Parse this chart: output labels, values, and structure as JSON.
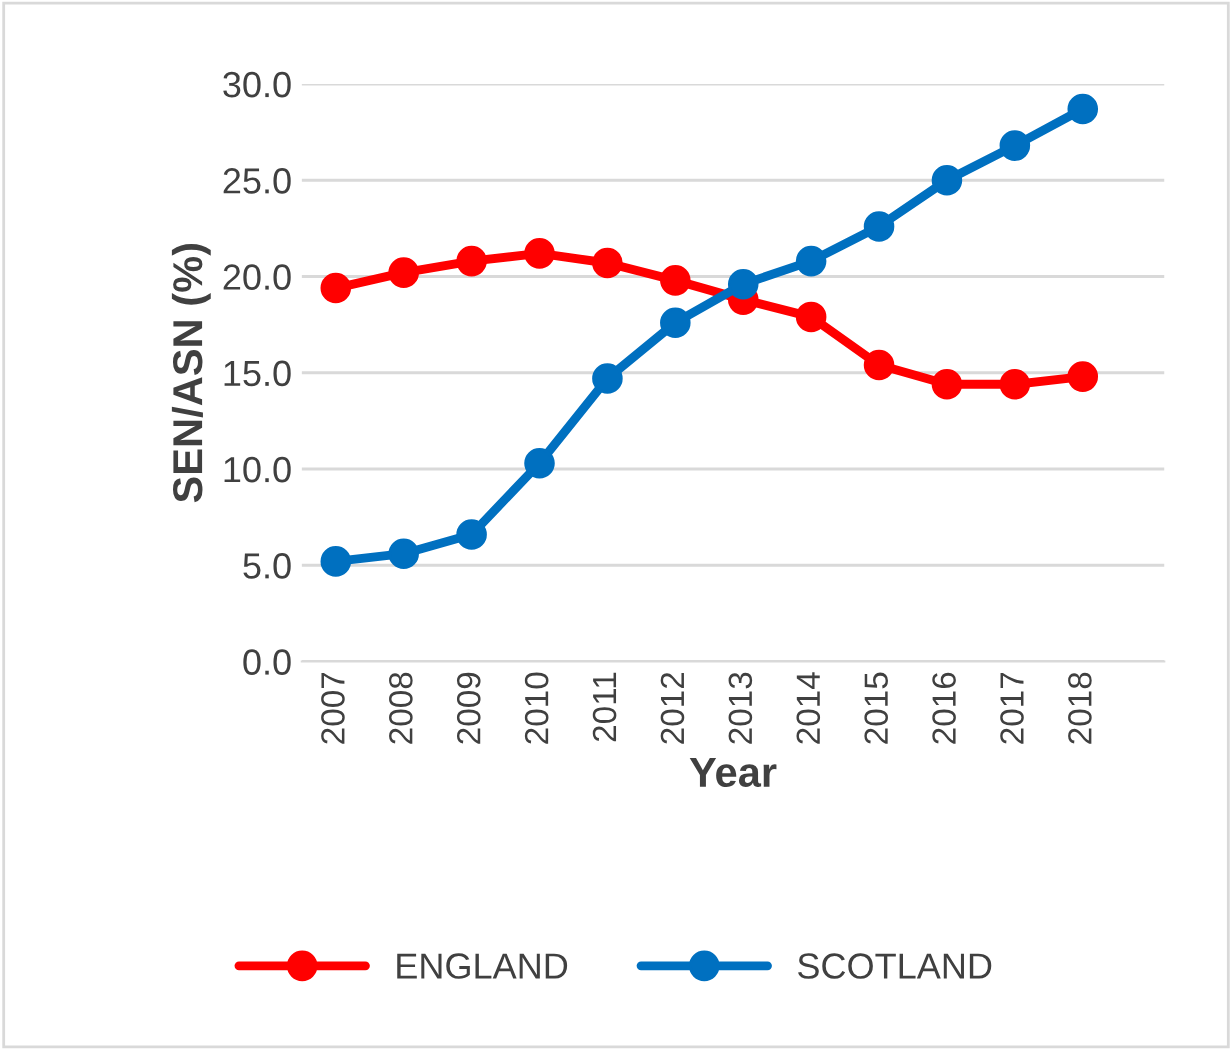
{
  "chart_data": {
    "type": "line",
    "xlabel": "Year",
    "ylabel": "SEN/ASN (%)",
    "categories": [
      "2007",
      "2008",
      "2009",
      "2010",
      "2011",
      "2012",
      "2013",
      "2014",
      "2015",
      "2016",
      "2017",
      "2018"
    ],
    "series": [
      {
        "name": "ENGLAND",
        "color": "#ff0000",
        "values": [
          19.4,
          20.2,
          20.8,
          21.2,
          20.7,
          19.8,
          18.8,
          17.9,
          15.4,
          14.4,
          14.4,
          14.8
        ]
      },
      {
        "name": "SCOTLAND",
        "color": "#0070c0",
        "values": [
          5.2,
          5.6,
          6.6,
          10.3,
          14.7,
          17.6,
          19.6,
          20.8,
          22.6,
          25.0,
          26.8,
          28.7
        ]
      }
    ],
    "ylim": [
      0,
      30
    ],
    "yticks": [
      {
        "value": 0,
        "label": "0.0"
      },
      {
        "value": 5,
        "label": "5.0"
      },
      {
        "value": 10,
        "label": "10.0"
      },
      {
        "value": 15,
        "label": "15.0"
      },
      {
        "value": 20,
        "label": "20.0"
      },
      {
        "value": 25,
        "label": "25.0"
      },
      {
        "value": 30,
        "label": "30.0"
      }
    ],
    "grid": "y",
    "legend": "bottom",
    "marker": "circle",
    "line_style": "solid"
  }
}
